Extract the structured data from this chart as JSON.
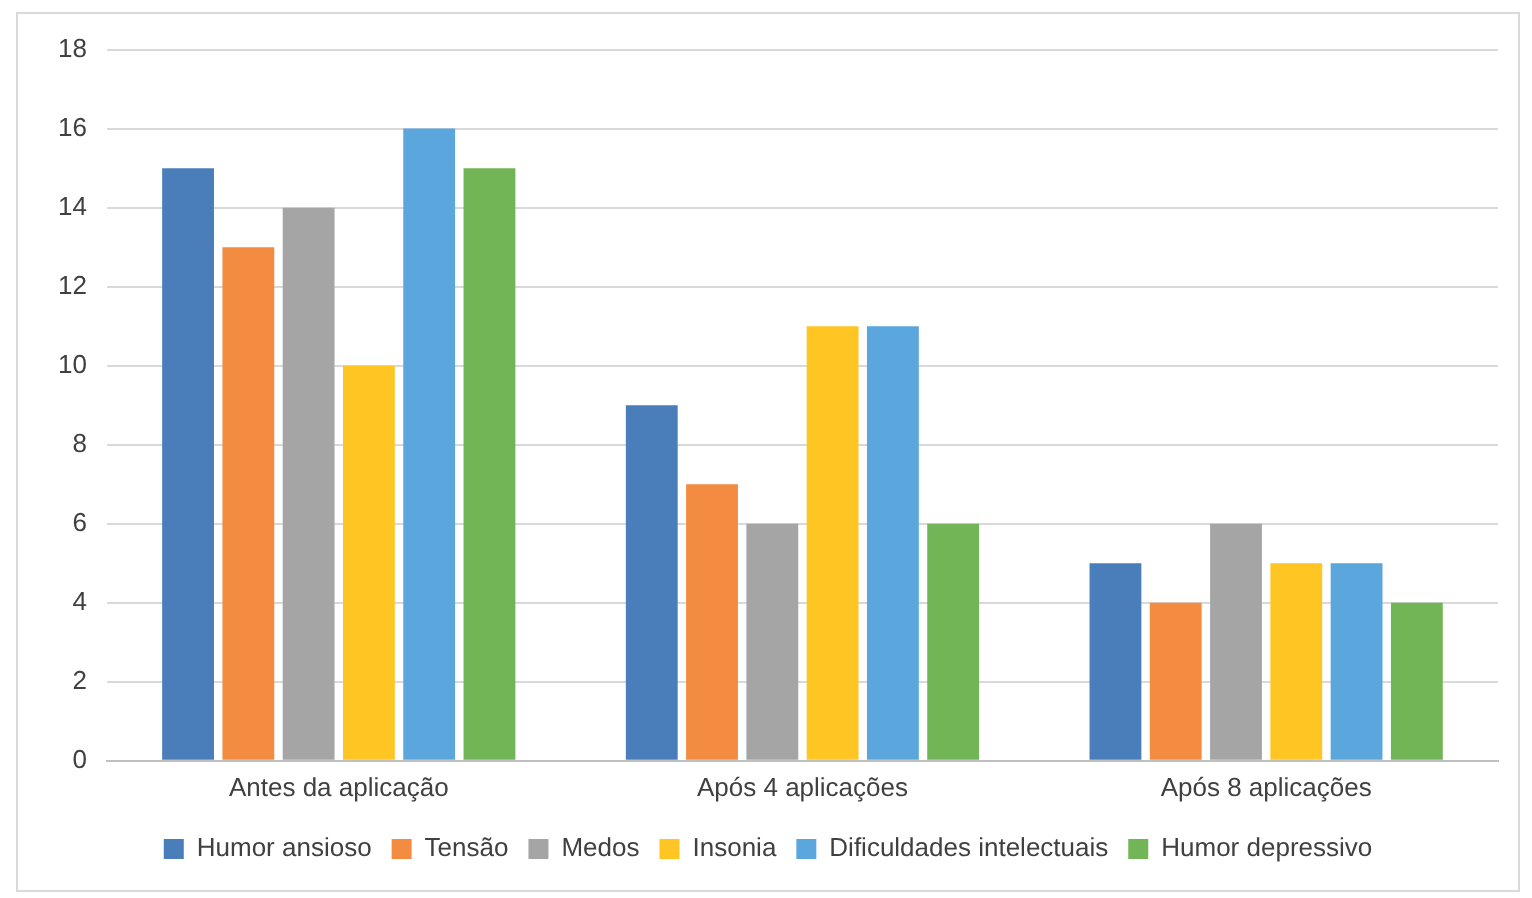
{
  "chart_data": {
    "type": "bar",
    "categories": [
      "Antes da aplicação",
      "Após 4 aplicações",
      "Após 8 aplicações"
    ],
    "series": [
      {
        "name": "Humor ansioso",
        "color": "#4a7ebb",
        "values": [
          15,
          9,
          5
        ]
      },
      {
        "name": "Tensão",
        "color": "#f38b40",
        "values": [
          13,
          7,
          4
        ]
      },
      {
        "name": "Medos",
        "color": "#a5a5a5",
        "values": [
          14,
          6,
          6
        ]
      },
      {
        "name": "Insonia",
        "color": "#ffc523",
        "values": [
          10,
          11,
          5
        ]
      },
      {
        "name": "Dificuldades intelectuais",
        "color": "#5ba6dd",
        "values": [
          16,
          11,
          5
        ]
      },
      {
        "name": "Humor depressivo",
        "color": "#72b557",
        "values": [
          15,
          6,
          4
        ]
      }
    ],
    "ylim": [
      0,
      18
    ],
    "yticks": [
      0,
      2,
      4,
      6,
      8,
      10,
      12,
      14,
      16,
      18
    ],
    "grid": "y",
    "legend": "bottom"
  }
}
